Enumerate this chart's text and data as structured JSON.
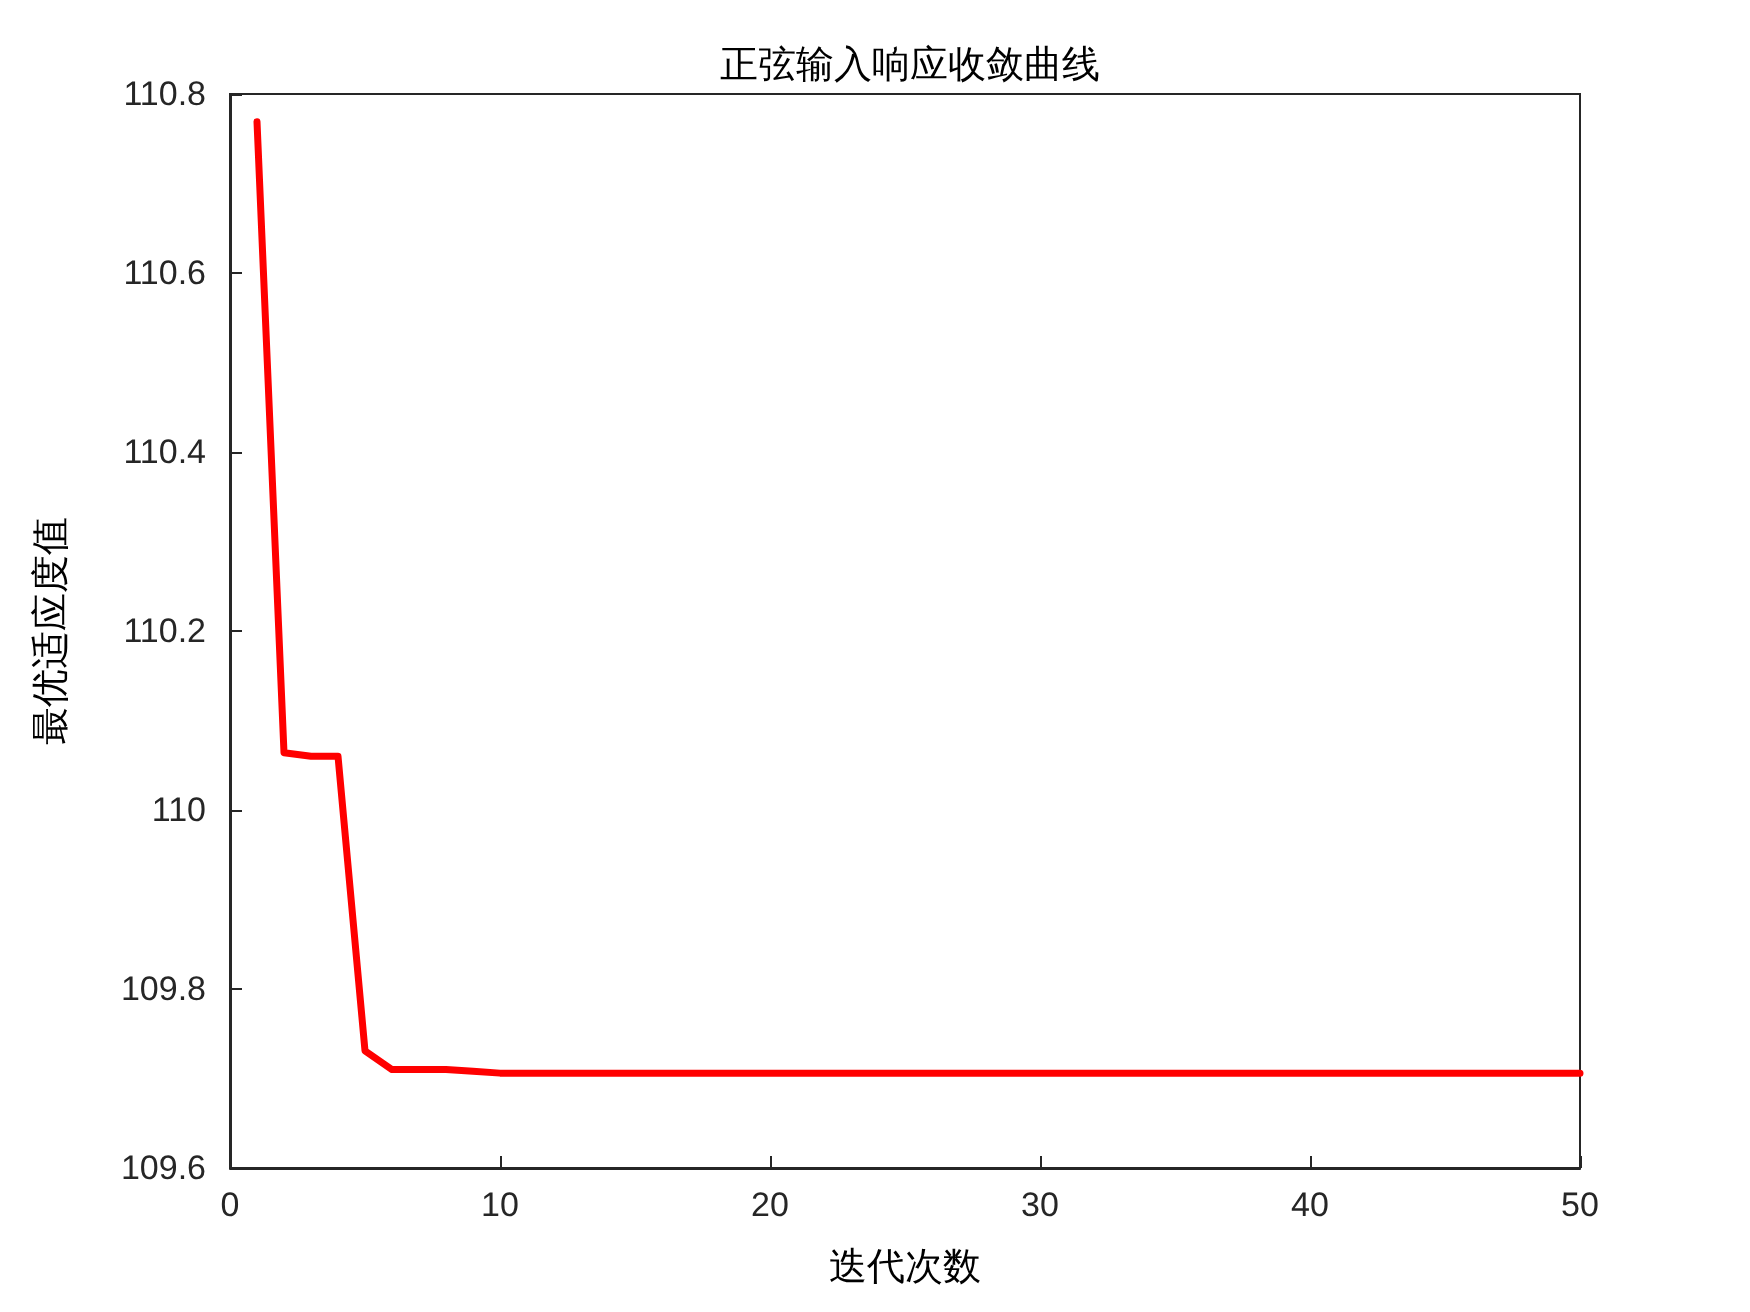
{
  "chart_data": {
    "type": "line",
    "title": "正弦输入响应收敛曲线",
    "xlabel": "迭代次数",
    "ylabel": "最优适应度值",
    "x": [
      1,
      2,
      3,
      4,
      5,
      6,
      7,
      8,
      9,
      10,
      15,
      20,
      25,
      30,
      35,
      40,
      45,
      50
    ],
    "series": [
      {
        "color": "#ff0000",
        "values": [
          110.769,
          110.064,
          110.06,
          110.06,
          109.731,
          109.71,
          109.71,
          109.71,
          109.708,
          109.706,
          109.706,
          109.706,
          109.706,
          109.706,
          109.706,
          109.706,
          109.706,
          109.706
        ]
      }
    ],
    "xlim": [
      0,
      50
    ],
    "xticks": [
      0,
      10,
      20,
      30,
      40,
      50
    ],
    "ylim": [
      109.6,
      110.8
    ],
    "yticks": [
      109.6,
      109.8,
      110,
      110.2,
      110.4,
      110.6,
      110.8
    ],
    "grid": false,
    "marker": "none",
    "line_style": "solid"
  }
}
